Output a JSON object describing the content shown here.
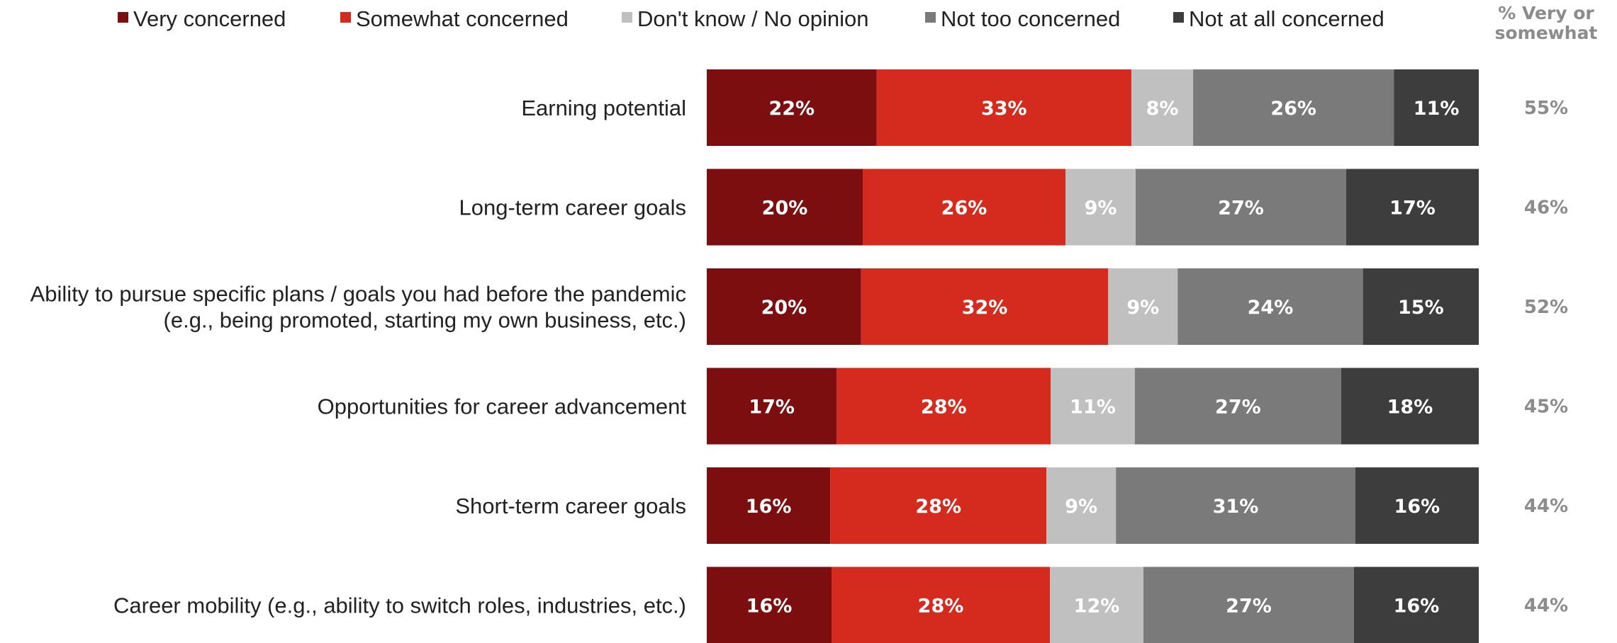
{
  "chart_data": {
    "type": "bar",
    "orientation": "horizontal",
    "stacked": true,
    "legend_position": "top",
    "grid": false,
    "xlim": [
      0,
      100
    ],
    "categories": [
      [
        "Earning potential"
      ],
      [
        "Long-term career goals"
      ],
      [
        "Ability to pursue specific plans / goals you had before the pandemic",
        "(e.g., being promoted, starting my own business, etc.)"
      ],
      [
        "Opportunities for career advancement"
      ],
      [
        "Short-term career goals"
      ],
      [
        "Career mobility (e.g., ability to switch roles, industries, etc.)"
      ]
    ],
    "series": [
      {
        "name": "Very concerned",
        "color": "#7d0e10",
        "values": [
          22,
          20,
          20,
          17,
          16,
          16
        ]
      },
      {
        "name": "Somewhat concerned",
        "color": "#d52b1e",
        "values": [
          33,
          26,
          32,
          28,
          28,
          28
        ]
      },
      {
        "name": "Don't know / No opinion",
        "color": "#c0c0c0",
        "values": [
          8,
          9,
          9,
          11,
          9,
          12
        ]
      },
      {
        "name": "Not too concerned",
        "color": "#7a7a7a",
        "values": [
          26,
          27,
          24,
          27,
          31,
          27
        ]
      },
      {
        "name": "Not at all concerned",
        "color": "#3d3d3d",
        "values": [
          11,
          17,
          15,
          18,
          16,
          16
        ]
      }
    ],
    "total_column": {
      "header": [
        "% Very or",
        "somewhat"
      ],
      "values": [
        "55%",
        "46%",
        "52%",
        "45%",
        "44%",
        "44%"
      ]
    }
  }
}
